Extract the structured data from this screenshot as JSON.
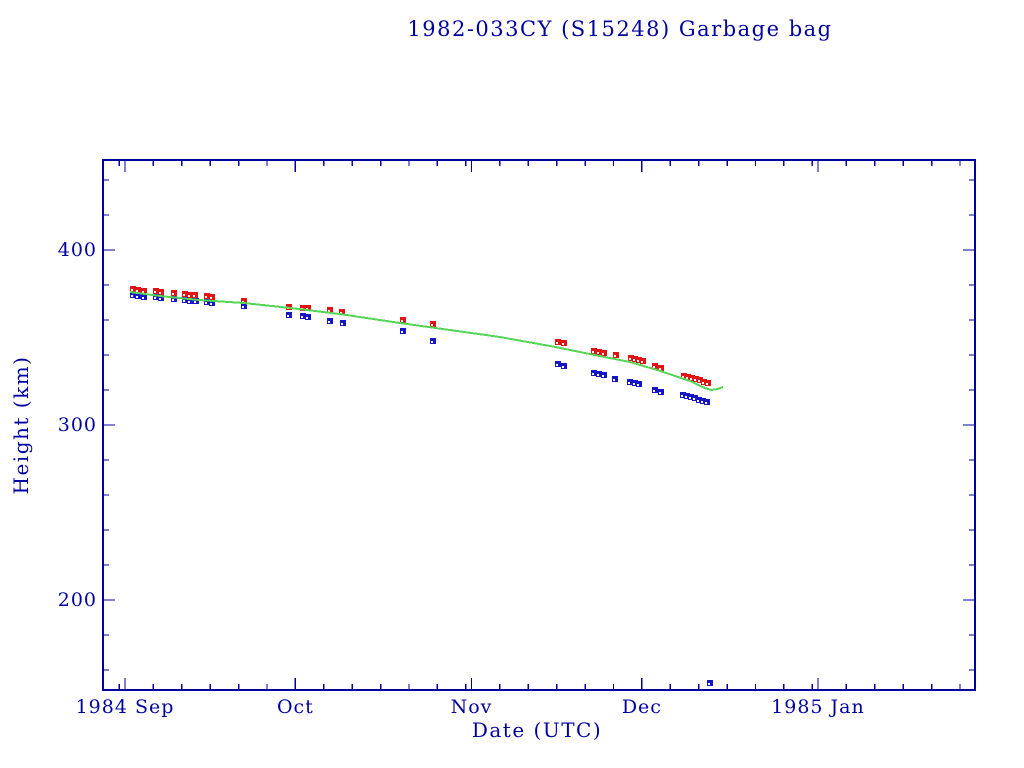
{
  "chart_data": {
    "type": "scatter",
    "title": "1982-033CY (S15248) Garbage bag",
    "xlabel": "Date (UTC)",
    "ylabel": "Height (km)",
    "colors": {
      "axis_and_text": "#0000a0",
      "apogee": "#e01414",
      "perigee": "#1616c8",
      "mean_line": "#55d555",
      "background": "#ffffff"
    },
    "x_axis": {
      "unit": "days since 1984-09-01",
      "range_days": [
        -3.9,
        149.6
      ],
      "minor_tick_step_days": 5,
      "major_ticks": [
        {
          "label": "1984 Sep",
          "d": 0
        },
        {
          "label": "Oct",
          "d": 30
        },
        {
          "label": "Nov",
          "d": 61
        },
        {
          "label": "Dec",
          "d": 91
        },
        {
          "label": "1985 Jan",
          "d": 122
        }
      ]
    },
    "y_axis": {
      "unit": "km",
      "range": [
        148,
        451
      ],
      "minor_tick_step": 20,
      "major_ticks": [
        {
          "label": "400",
          "v": 400
        },
        {
          "label": "300",
          "v": 300
        },
        {
          "label": "200",
          "v": 200
        }
      ]
    },
    "legend": null,
    "grid": false,
    "series": [
      {
        "name": "apogee-height",
        "style": "square-marker",
        "color_key": "apogee",
        "points": [
          [
            1.4,
            377.7
          ],
          [
            2.3,
            377.1
          ],
          [
            3.3,
            376.6
          ],
          [
            5.5,
            376.6
          ],
          [
            6.3,
            376.0
          ],
          [
            8.6,
            375.4
          ],
          [
            10.6,
            374.9
          ],
          [
            11.4,
            374.3
          ],
          [
            12.3,
            374.3
          ],
          [
            14.4,
            373.7
          ],
          [
            15.3,
            373.1
          ],
          [
            20.9,
            370.9
          ],
          [
            28.9,
            367.4
          ],
          [
            31.3,
            366.9
          ],
          [
            32.2,
            366.9
          ],
          [
            36.1,
            365.7
          ],
          [
            38.2,
            364.6
          ],
          [
            48.9,
            360.0
          ],
          [
            54.2,
            357.7
          ],
          [
            76.2,
            347.4
          ],
          [
            77.3,
            346.9
          ],
          [
            82.6,
            342.3
          ],
          [
            83.5,
            341.7
          ],
          [
            84.3,
            341.1
          ],
          [
            86.4,
            340.0
          ],
          [
            89.1,
            338.3
          ],
          [
            89.8,
            337.7
          ],
          [
            90.5,
            337.1
          ],
          [
            91.2,
            336.6
          ],
          [
            93.3,
            333.7
          ],
          [
            94.4,
            332.6
          ],
          [
            98.4,
            328.0
          ],
          [
            99.1,
            327.4
          ],
          [
            99.8,
            326.9
          ],
          [
            100.5,
            326.3
          ],
          [
            101.2,
            325.7
          ],
          [
            101.9,
            324.6
          ],
          [
            102.6,
            324.0
          ]
        ]
      },
      {
        "name": "perigee-height",
        "style": "square-marker",
        "color_key": "perigee",
        "points": [
          [
            1.4,
            374.3
          ],
          [
            2.3,
            373.7
          ],
          [
            3.3,
            373.1
          ],
          [
            5.5,
            373.1
          ],
          [
            6.3,
            372.6
          ],
          [
            8.6,
            372.0
          ],
          [
            10.6,
            371.4
          ],
          [
            11.4,
            370.9
          ],
          [
            12.5,
            370.9
          ],
          [
            14.4,
            370.3
          ],
          [
            15.3,
            369.7
          ],
          [
            20.9,
            368.0
          ],
          [
            28.9,
            362.9
          ],
          [
            31.3,
            362.3
          ],
          [
            32.2,
            361.7
          ],
          [
            36.1,
            359.4
          ],
          [
            38.4,
            358.3
          ],
          [
            48.9,
            353.7
          ],
          [
            54.2,
            348.0
          ],
          [
            76.2,
            334.9
          ],
          [
            77.3,
            333.7
          ],
          [
            82.6,
            329.7
          ],
          [
            83.5,
            329.1
          ],
          [
            84.3,
            328.6
          ],
          [
            86.3,
            326.3
          ],
          [
            88.9,
            324.6
          ],
          [
            89.8,
            324.0
          ],
          [
            90.5,
            323.4
          ],
          [
            93.3,
            320.0
          ],
          [
            94.4,
            318.9
          ],
          [
            98.2,
            317.1
          ],
          [
            98.9,
            316.6
          ],
          [
            99.6,
            316.0
          ],
          [
            100.4,
            315.4
          ],
          [
            101.1,
            314.3
          ],
          [
            101.8,
            313.7
          ],
          [
            102.5,
            313.1
          ],
          [
            103.0,
            152.6
          ]
        ]
      },
      {
        "name": "mean-height-line",
        "style": "line",
        "color_key": "mean_line",
        "points": [
          [
            0.9,
            376.0
          ],
          [
            6.2,
            373.7
          ],
          [
            13.2,
            371.4
          ],
          [
            20.9,
            369.7
          ],
          [
            29.0,
            366.9
          ],
          [
            37.9,
            363.4
          ],
          [
            48.4,
            358.3
          ],
          [
            57.2,
            354.3
          ],
          [
            66.0,
            350.3
          ],
          [
            75.7,
            344.6
          ],
          [
            83.6,
            339.4
          ],
          [
            88.9,
            336.0
          ],
          [
            94.2,
            330.9
          ],
          [
            99.5,
            325.1
          ],
          [
            102.1,
            321.1
          ],
          [
            103.3,
            320.0
          ],
          [
            104.4,
            320.6
          ],
          [
            105.3,
            321.7
          ]
        ]
      }
    ]
  }
}
